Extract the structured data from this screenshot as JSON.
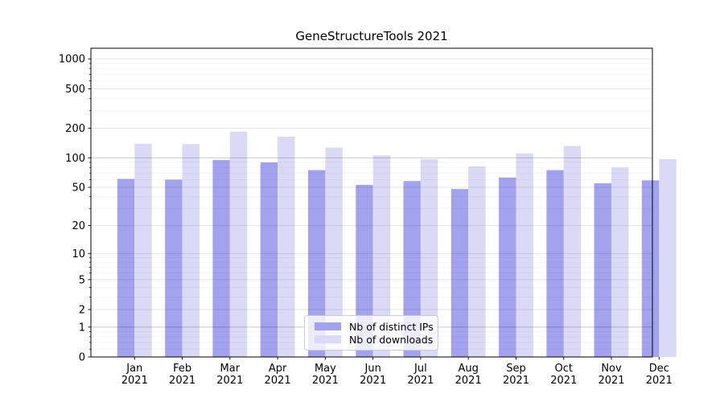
{
  "title": "GeneStructureTools 2021",
  "chart_data": {
    "type": "bar",
    "title": "GeneStructureTools 2021",
    "x_months": [
      "Jan",
      "Feb",
      "Mar",
      "Apr",
      "May",
      "Jun",
      "Jul",
      "Aug",
      "Sep",
      "Oct",
      "Nov",
      "Dec"
    ],
    "x_year": "2021",
    "categories": [
      "Jan 2021",
      "Feb 2021",
      "Mar 2021",
      "Apr 2021",
      "May 2021",
      "Jun 2021",
      "Jul 2021",
      "Aug 2021",
      "Sep 2021",
      "Oct 2021",
      "Nov 2021",
      "Dec 2021"
    ],
    "series": [
      {
        "name": "Nb of distinct IPs",
        "color": "#a2a2ef",
        "values": [
          61,
          60,
          95,
          90,
          75,
          53,
          58,
          48,
          63,
          75,
          55,
          59
        ]
      },
      {
        "name": "Nb of downloads",
        "color": "#dadaf6",
        "values": [
          139,
          138,
          184,
          164,
          127,
          106,
          97,
          82,
          111,
          132,
          80,
          97
        ]
      }
    ],
    "yscale": "log1p",
    "ylim": [
      0,
      1280
    ],
    "y_major_ticks": [
      0,
      1,
      2,
      5,
      10,
      20,
      50,
      100,
      200,
      500,
      1000
    ],
    "y_minor_ticks": [
      0.2,
      0.4,
      0.6,
      0.8,
      3,
      4,
      6,
      7,
      8,
      9,
      30,
      40,
      60,
      70,
      80,
      90,
      300,
      400,
      600,
      700,
      800,
      900
    ],
    "grid": true,
    "legend_position": "lower-center"
  },
  "colors": {
    "background": "#ffffff",
    "axis": "#000000",
    "tick_label": "#000000",
    "grid_major": "rgba(0,0,0,0.11)",
    "grid_minor": "rgba(0,0,0,0.045)",
    "grid_emphasis": "rgba(0,0,0,0.24)",
    "grid_emphasis_values": [
      1,
      100
    ],
    "legend_border": "#cccccc",
    "legend_background": "rgba(255,255,255,0.8)"
  }
}
